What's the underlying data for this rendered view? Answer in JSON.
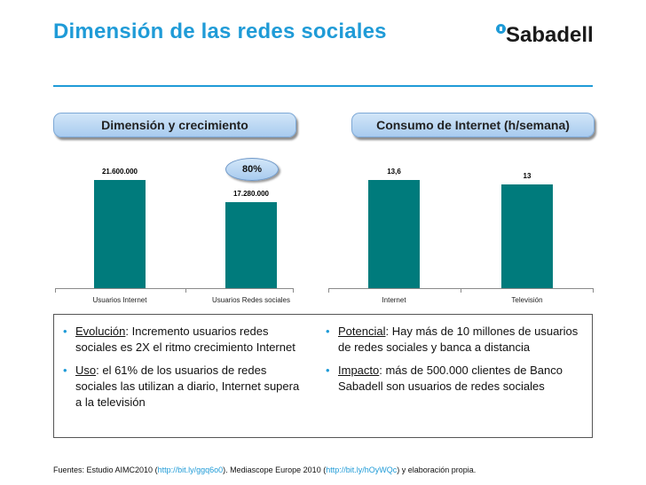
{
  "header": {
    "title": "Dimensión de las redes sociales",
    "logo_text": "Sabadell"
  },
  "panels": {
    "left_title": "Dimensión y crecimiento",
    "right_title": "Consumo de Internet (h/semana)"
  },
  "badge": {
    "label": "80%"
  },
  "chart_data": [
    {
      "type": "bar",
      "title": "Dimensión y crecimiento",
      "categories": [
        "Usuarios Internet",
        "Usuarios Redes sociales"
      ],
      "values": [
        21600000,
        17280000
      ],
      "value_labels": [
        "21.600.000",
        "17.280.000"
      ],
      "ylim": [
        0,
        24000000
      ],
      "grid": false,
      "color": "#007b7c"
    },
    {
      "type": "bar",
      "title": "Consumo de Internet (h/semana)",
      "categories": [
        "Internet",
        "Televisión"
      ],
      "values": [
        13.6,
        13
      ],
      "value_labels": [
        "13,6",
        "13"
      ],
      "ylim": [
        0,
        15
      ],
      "grid": false,
      "color": "#007b7c"
    }
  ],
  "bullets": {
    "left": [
      {
        "lead": "Evolución",
        "text": ": Incremento usuarios redes sociales es 2X el ritmo crecimiento Internet"
      },
      {
        "lead": "Uso",
        "text": ": el 61% de los usuarios de redes sociales las utilizan a diario, Internet supera a la televisión"
      }
    ],
    "right": [
      {
        "lead": "Potencial",
        "text": ": Hay más de 10 millones de usuarios de redes sociales y banca a distancia"
      },
      {
        "lead": "Impacto",
        "text": ": más de 500.000 clientes de Banco Sabadell son usuarios de redes sociales"
      }
    ]
  },
  "footer": {
    "prefix": "Fuentes: Estudio AIMC2010 (",
    "link1": "http://bit.ly/ggq6o0",
    "middle": "). Mediascope Europe 2010 (",
    "link2": "http://bit.ly/hOyWQc",
    "suffix": ") y elaboración propia."
  },
  "colors": {
    "accent": "#1f9bd7",
    "bar": "#007b7c"
  }
}
